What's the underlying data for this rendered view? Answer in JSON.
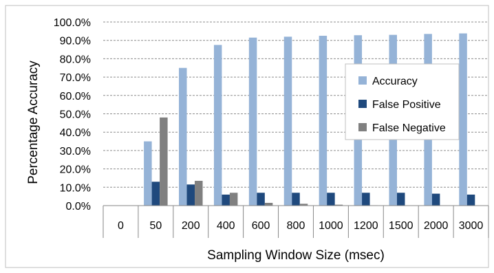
{
  "chart_data": {
    "type": "bar",
    "title": "",
    "xlabel": "Sampling Window Size (msec)",
    "ylabel": "Percentage Accuracy",
    "categories": [
      "0",
      "50",
      "200",
      "400",
      "600",
      "800",
      "1000",
      "1200",
      "1500",
      "2000",
      "3000"
    ],
    "series": [
      {
        "name": "Accuracy",
        "color": "#95b3d7",
        "values": [
          0,
          35.0,
          75.0,
          87.5,
          91.5,
          92.0,
          92.5,
          92.8,
          93.0,
          93.5,
          93.8
        ]
      },
      {
        "name": "False Positive",
        "color": "#1f497d",
        "values": [
          0,
          13.0,
          11.5,
          6.0,
          7.0,
          7.0,
          7.0,
          7.0,
          7.0,
          6.5,
          6.0
        ]
      },
      {
        "name": "False Negative",
        "color": "#808080",
        "values": [
          0,
          48.0,
          13.5,
          7.0,
          1.5,
          1.0,
          0.5,
          0.2,
          0,
          0,
          0
        ]
      }
    ],
    "ylim": [
      0,
      100
    ],
    "yticks": [
      "0.0%",
      "10.0%",
      "20.0%",
      "30.0%",
      "40.0%",
      "50.0%",
      "60.0%",
      "70.0%",
      "80.0%",
      "90.0%",
      "100.0%"
    ],
    "grid": true,
    "legend": "upper-right, inside plot"
  }
}
